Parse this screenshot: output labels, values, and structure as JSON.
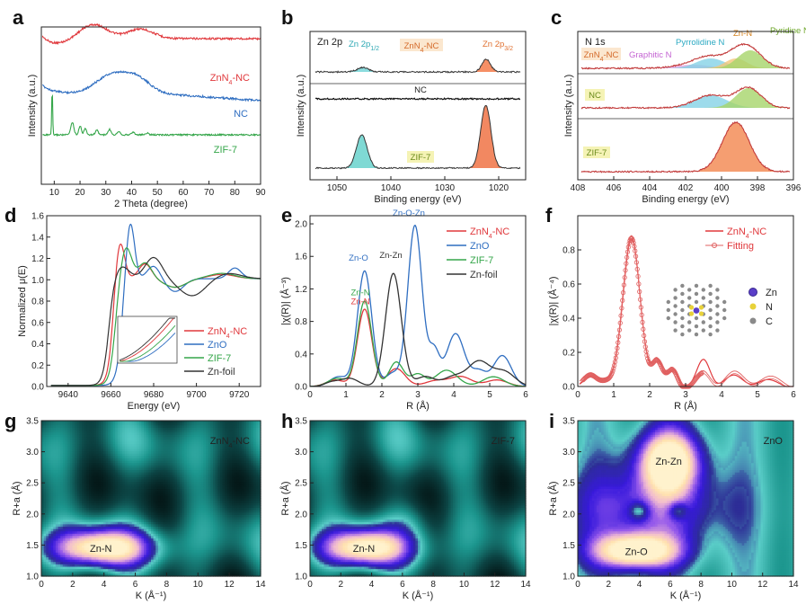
{
  "panel_letters": [
    "a",
    "b",
    "c",
    "d",
    "e",
    "f",
    "g",
    "h",
    "i"
  ],
  "chart_data": [
    {
      "id": "a",
      "type": "line",
      "xlabel": "2 Theta (degree)",
      "ylabel": "Intensity (a.u.)",
      "xlim": [
        5,
        90
      ],
      "xticks": [
        "10",
        "20",
        "30",
        "40",
        "50",
        "60",
        "70",
        "80",
        "90"
      ],
      "series": [
        {
          "name": "ZnN4-NC",
          "color": "#e0383c"
        },
        {
          "name": "NC",
          "color": "#2f6ec1"
        },
        {
          "name": "ZIF-7",
          "color": "#35a64a"
        }
      ]
    },
    {
      "id": "b",
      "type": "line",
      "title": "Zn 2p",
      "xlabel": "Binding energy (eV)",
      "ylabel": "Intensity (a.u.)",
      "xlim": [
        1055,
        1015
      ],
      "xticks": [
        "1050",
        "1040",
        "1030",
        "1020"
      ],
      "annotations": [
        "Zn 2p1/2",
        "Zn 2p3/2"
      ],
      "series": [
        {
          "name": "ZnN4-NC",
          "peaks": [
            1045.2,
            1022.3
          ]
        },
        {
          "name": "NC",
          "peaks": []
        },
        {
          "name": "ZIF-7",
          "peaks": [
            1045.4,
            1022.4
          ]
        }
      ]
    },
    {
      "id": "c",
      "type": "line",
      "title": "N 1s",
      "xlabel": "Binding energy (eV)",
      "ylabel": "Intensity (a.u.)",
      "xlim": [
        408,
        396
      ],
      "xticks": [
        "408",
        "406",
        "404",
        "402",
        "400",
        "398",
        "396"
      ],
      "components": [
        "Graphitic N",
        "Pyrrolidine N",
        "Zn-N",
        "Pyridine N"
      ],
      "series": [
        {
          "name": "ZnN4-NC",
          "peaks": [
            401.6,
            400.6,
            399.2,
            398.4
          ]
        },
        {
          "name": "NC",
          "peaks": [
            400.6,
            398.5
          ]
        },
        {
          "name": "ZIF-7",
          "peaks": [
            399.2
          ]
        }
      ]
    },
    {
      "id": "d",
      "type": "line",
      "xlabel": "Energy (eV)",
      "ylabel": "Normalized μ(E)",
      "xlim": [
        9630,
        9730
      ],
      "ylim": [
        0.0,
        1.6
      ],
      "xticks": [
        "9640",
        "9660",
        "9680",
        "9700",
        "9720"
      ],
      "yticks": [
        "0.0",
        "0.2",
        "0.4",
        "0.6",
        "0.8",
        "1.0",
        "1.2",
        "1.4",
        "1.6"
      ],
      "series": [
        {
          "name": "ZnN4-NC",
          "color": "#e0383c",
          "peak": [
            9664,
            1.41
          ]
        },
        {
          "name": "ZnO",
          "color": "#2f6ec1",
          "peak": [
            9669,
            1.56
          ]
        },
        {
          "name": "ZIF-7",
          "color": "#35a64a",
          "peak": [
            9667,
            1.31
          ]
        },
        {
          "name": "Zn-foil",
          "color": "#333333",
          "peak": [
            9665,
            1.12
          ]
        }
      ]
    },
    {
      "id": "e",
      "type": "line",
      "xlabel": "R (Å)",
      "ylabel": "|χ(R)| (Å⁻³)",
      "xlim": [
        0,
        6
      ],
      "ylim": [
        0.0,
        2.1
      ],
      "xticks": [
        "0",
        "1",
        "2",
        "3",
        "4",
        "5",
        "6"
      ],
      "yticks": [
        "0.0",
        "0.4",
        "0.8",
        "1.2",
        "1.6",
        "2.0"
      ],
      "annotations": [
        "Zn-O-Zn",
        "Zn-O",
        "Zn-Zn",
        "Zn-N",
        "Zn-N"
      ],
      "series": [
        {
          "name": "ZnN4-NC",
          "color": "#e0383c",
          "peaks": [
            [
              1.52,
              0.95
            ]
          ]
        },
        {
          "name": "ZnO",
          "color": "#2f6ec1",
          "peaks": [
            [
              1.52,
              1.42
            ],
            [
              2.92,
              1.98
            ],
            [
              4.05,
              0.65
            ]
          ]
        },
        {
          "name": "ZIF-7",
          "color": "#35a64a",
          "peaks": [
            [
              1.52,
              1.05
            ]
          ]
        },
        {
          "name": "Zn-foil",
          "color": "#333333",
          "peaks": [
            [
              2.32,
              1.39
            ]
          ]
        }
      ]
    },
    {
      "id": "f",
      "type": "line",
      "xlabel": "R (Å)",
      "ylabel": "|χ(R)| (Å⁻⁴)",
      "xlim": [
        0,
        6
      ],
      "ylim": [
        0.0,
        1.0
      ],
      "xticks": [
        "0",
        "1",
        "2",
        "3",
        "4",
        "5",
        "6"
      ],
      "yticks": [
        "0.0",
        "0.2",
        "0.4",
        "0.6",
        "0.8"
      ],
      "series": [
        {
          "name": "ZnN4-NC",
          "color": "#e0383c",
          "peak": [
            1.5,
            0.91
          ]
        },
        {
          "name": "Fitting",
          "color": "#e0383c",
          "marker": "circle"
        }
      ],
      "inset_legend": [
        "Zn",
        "N",
        "C"
      ]
    },
    {
      "id": "g",
      "type": "heatmap",
      "label": "ZnN4-NC",
      "xlabel": "K (Å⁻¹)",
      "ylabel": "R+a (Å)",
      "xlim": [
        0,
        14
      ],
      "ylim": [
        1.0,
        3.5
      ],
      "xticks": [
        "0",
        "2",
        "4",
        "6",
        "8",
        "10",
        "12",
        "14"
      ],
      "yticks": [
        "1.0",
        "1.5",
        "2.0",
        "2.5",
        "3.0",
        "3.5"
      ],
      "maxima": [
        {
          "label": "Zn-N",
          "k": 3.8,
          "r": 1.45
        }
      ]
    },
    {
      "id": "h",
      "type": "heatmap",
      "label": "ZIF-7",
      "xlabel": "K (Å⁻¹)",
      "ylabel": "R+a (Å)",
      "xlim": [
        0,
        14
      ],
      "ylim": [
        1.0,
        3.5
      ],
      "xticks": [
        "0",
        "2",
        "4",
        "6",
        "8",
        "10",
        "12",
        "14"
      ],
      "yticks": [
        "1.0",
        "1.5",
        "2.0",
        "2.5",
        "3.0",
        "3.5"
      ],
      "maxima": [
        {
          "label": "Zn-N",
          "k": 3.5,
          "r": 1.45
        }
      ]
    },
    {
      "id": "i",
      "type": "heatmap",
      "label": "ZnO",
      "xlabel": "K (Å⁻¹)",
      "ylabel": "R+a (Å)",
      "xlim": [
        0,
        14
      ],
      "ylim": [
        1.0,
        3.5
      ],
      "xticks": [
        "0",
        "2",
        "4",
        "6",
        "8",
        "10",
        "12",
        "14"
      ],
      "yticks": [
        "1.0",
        "1.5",
        "2.0",
        "2.5",
        "3.0",
        "3.5"
      ],
      "maxima": [
        {
          "label": "Zn-Zn",
          "k": 5.9,
          "r": 2.85
        },
        {
          "label": "Zn-O",
          "k": 3.8,
          "r": 1.4
        }
      ]
    }
  ]
}
